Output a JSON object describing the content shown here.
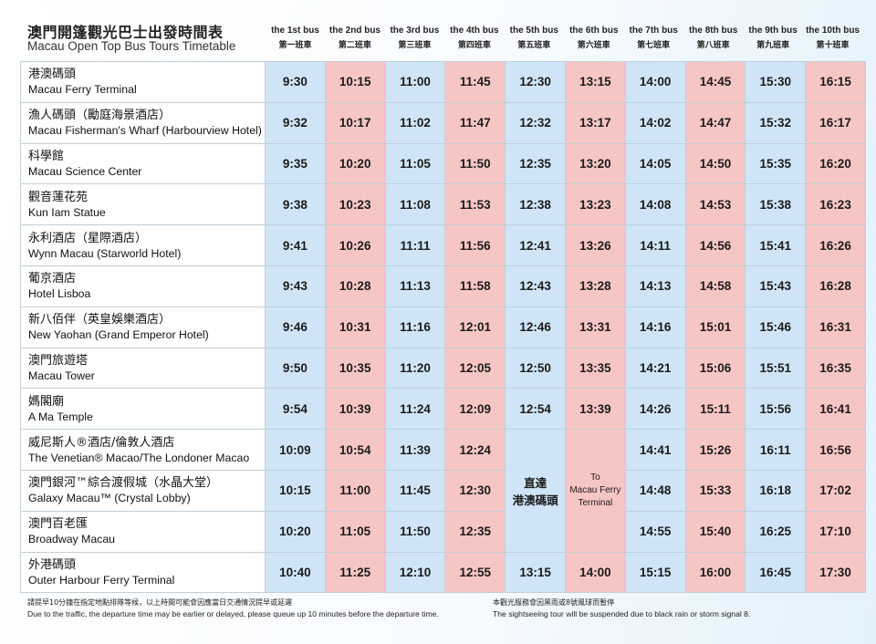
{
  "title_zh": "澳門開篷觀光巴士出發時間表",
  "title_en": "Macau Open Top Bus Tours Timetable",
  "buses": [
    {
      "en": "the 1st bus",
      "zh": "第一班車"
    },
    {
      "en": "the 2nd bus",
      "zh": "第二班車"
    },
    {
      "en": "the 3rd bus",
      "zh": "第三班車"
    },
    {
      "en": "the 4th bus",
      "zh": "第四班車"
    },
    {
      "en": "the 5th bus",
      "zh": "第五班車"
    },
    {
      "en": "the 6th bus",
      "zh": "第六班車"
    },
    {
      "en": "the 7th bus",
      "zh": "第七班車"
    },
    {
      "en": "the 8th bus",
      "zh": "第八班車"
    },
    {
      "en": "the 9th bus",
      "zh": "第九班車"
    },
    {
      "en": "the 10th bus",
      "zh": "第十班車"
    }
  ],
  "stops": [
    {
      "zh": "港澳碼頭",
      "en": "Macau Ferry Terminal",
      "times": [
        "9:30",
        "10:15",
        "11:00",
        "11:45",
        "12:30",
        "13:15",
        "14:00",
        "14:45",
        "15:30",
        "16:15"
      ]
    },
    {
      "zh": "漁人碼頭（勵庭海景酒店）",
      "en": "Macau Fisherman's Wharf (Harbourview Hotel)",
      "times": [
        "9:32",
        "10:17",
        "11:02",
        "11:47",
        "12:32",
        "13:17",
        "14:02",
        "14:47",
        "15:32",
        "16:17"
      ]
    },
    {
      "zh": "科學館",
      "en": "Macau Science Center",
      "times": [
        "9:35",
        "10:20",
        "11:05",
        "11:50",
        "12:35",
        "13:20",
        "14:05",
        "14:50",
        "15:35",
        "16:20"
      ]
    },
    {
      "zh": "觀音蓮花苑",
      "en": "Kun Iam Statue",
      "times": [
        "9:38",
        "10:23",
        "11:08",
        "11:53",
        "12:38",
        "13:23",
        "14:08",
        "14:53",
        "15:38",
        "16:23"
      ]
    },
    {
      "zh": "永利酒店（星際酒店）",
      "en": "Wynn Macau (Starworld Hotel)",
      "times": [
        "9:41",
        "10:26",
        "11:11",
        "11:56",
        "12:41",
        "13:26",
        "14:11",
        "14:56",
        "15:41",
        "16:26"
      ]
    },
    {
      "zh": "葡京酒店",
      "en": "Hotel Lisboa",
      "times": [
        "9:43",
        "10:28",
        "11:13",
        "11:58",
        "12:43",
        "13:28",
        "14:13",
        "14:58",
        "15:43",
        "16:28"
      ]
    },
    {
      "zh": "新八佰伴（英皇娛樂酒店）",
      "en": "New Yaohan (Grand Emperor Hotel)",
      "times": [
        "9:46",
        "10:31",
        "11:16",
        "12:01",
        "12:46",
        "13:31",
        "14:16",
        "15:01",
        "15:46",
        "16:31"
      ]
    },
    {
      "zh": "澳門旅遊塔",
      "en": "Macau Tower",
      "times": [
        "9:50",
        "10:35",
        "11:20",
        "12:05",
        "12:50",
        "13:35",
        "14:21",
        "15:06",
        "15:51",
        "16:35"
      ]
    },
    {
      "zh": "媽閣廟",
      "en": "A Ma Temple",
      "times": [
        "9:54",
        "10:39",
        "11:24",
        "12:09",
        "12:54",
        "13:39",
        "14:26",
        "15:11",
        "15:56",
        "16:41"
      ]
    },
    {
      "zh": "威尼斯人®酒店/倫敦人酒店",
      "en": "The Venetian® Macao/The Londoner Macao",
      "times": [
        "10:09",
        "10:54",
        "11:39",
        "12:24",
        "",
        "",
        "14:41",
        "15:26",
        "16:11",
        "16:56"
      ]
    },
    {
      "zh": "澳門銀河™綜合渡假城（水晶大堂）",
      "en": "Galaxy Macau™ (Crystal Lobby)",
      "times": [
        "10:15",
        "11:00",
        "11:45",
        "12:30",
        "",
        "",
        "14:48",
        "15:33",
        "16:18",
        "17:02"
      ]
    },
    {
      "zh": "澳門百老匯",
      "en": "Broadway Macau",
      "times": [
        "10:20",
        "11:05",
        "11:50",
        "12:35",
        "",
        "",
        "14:55",
        "15:40",
        "16:25",
        "17:10"
      ]
    },
    {
      "zh": "外港碼頭",
      "en": "Outer Harbour Ferry Terminal",
      "times": [
        "10:40",
        "11:25",
        "12:10",
        "12:55",
        "13:15",
        "14:00",
        "15:15",
        "16:00",
        "16:45",
        "17:30"
      ]
    }
  ],
  "direct_note": {
    "zh_line1": "直達",
    "zh_line2": "港澳碼頭",
    "en_line1": "To",
    "en_line2": "Macau Ferry",
    "en_line3": "Terminal"
  },
  "footer": {
    "left_zh": "請提早10分鐘在指定地點排隊等候，以上時間可能會因應當日交通情況提早或延遲",
    "left_en": "Due to the traffic, the departure time may be earlier or delayed, please queue up 10 minutes before the  departure time.",
    "right_zh": "本觀光服務會因黑雨或8號風球而暫停",
    "right_en": "The sightseeing tour will be suspended due to black rain or storm signal 8."
  },
  "colors": {
    "blue": "#cfe5f7",
    "pink": "#f6c6c4"
  }
}
